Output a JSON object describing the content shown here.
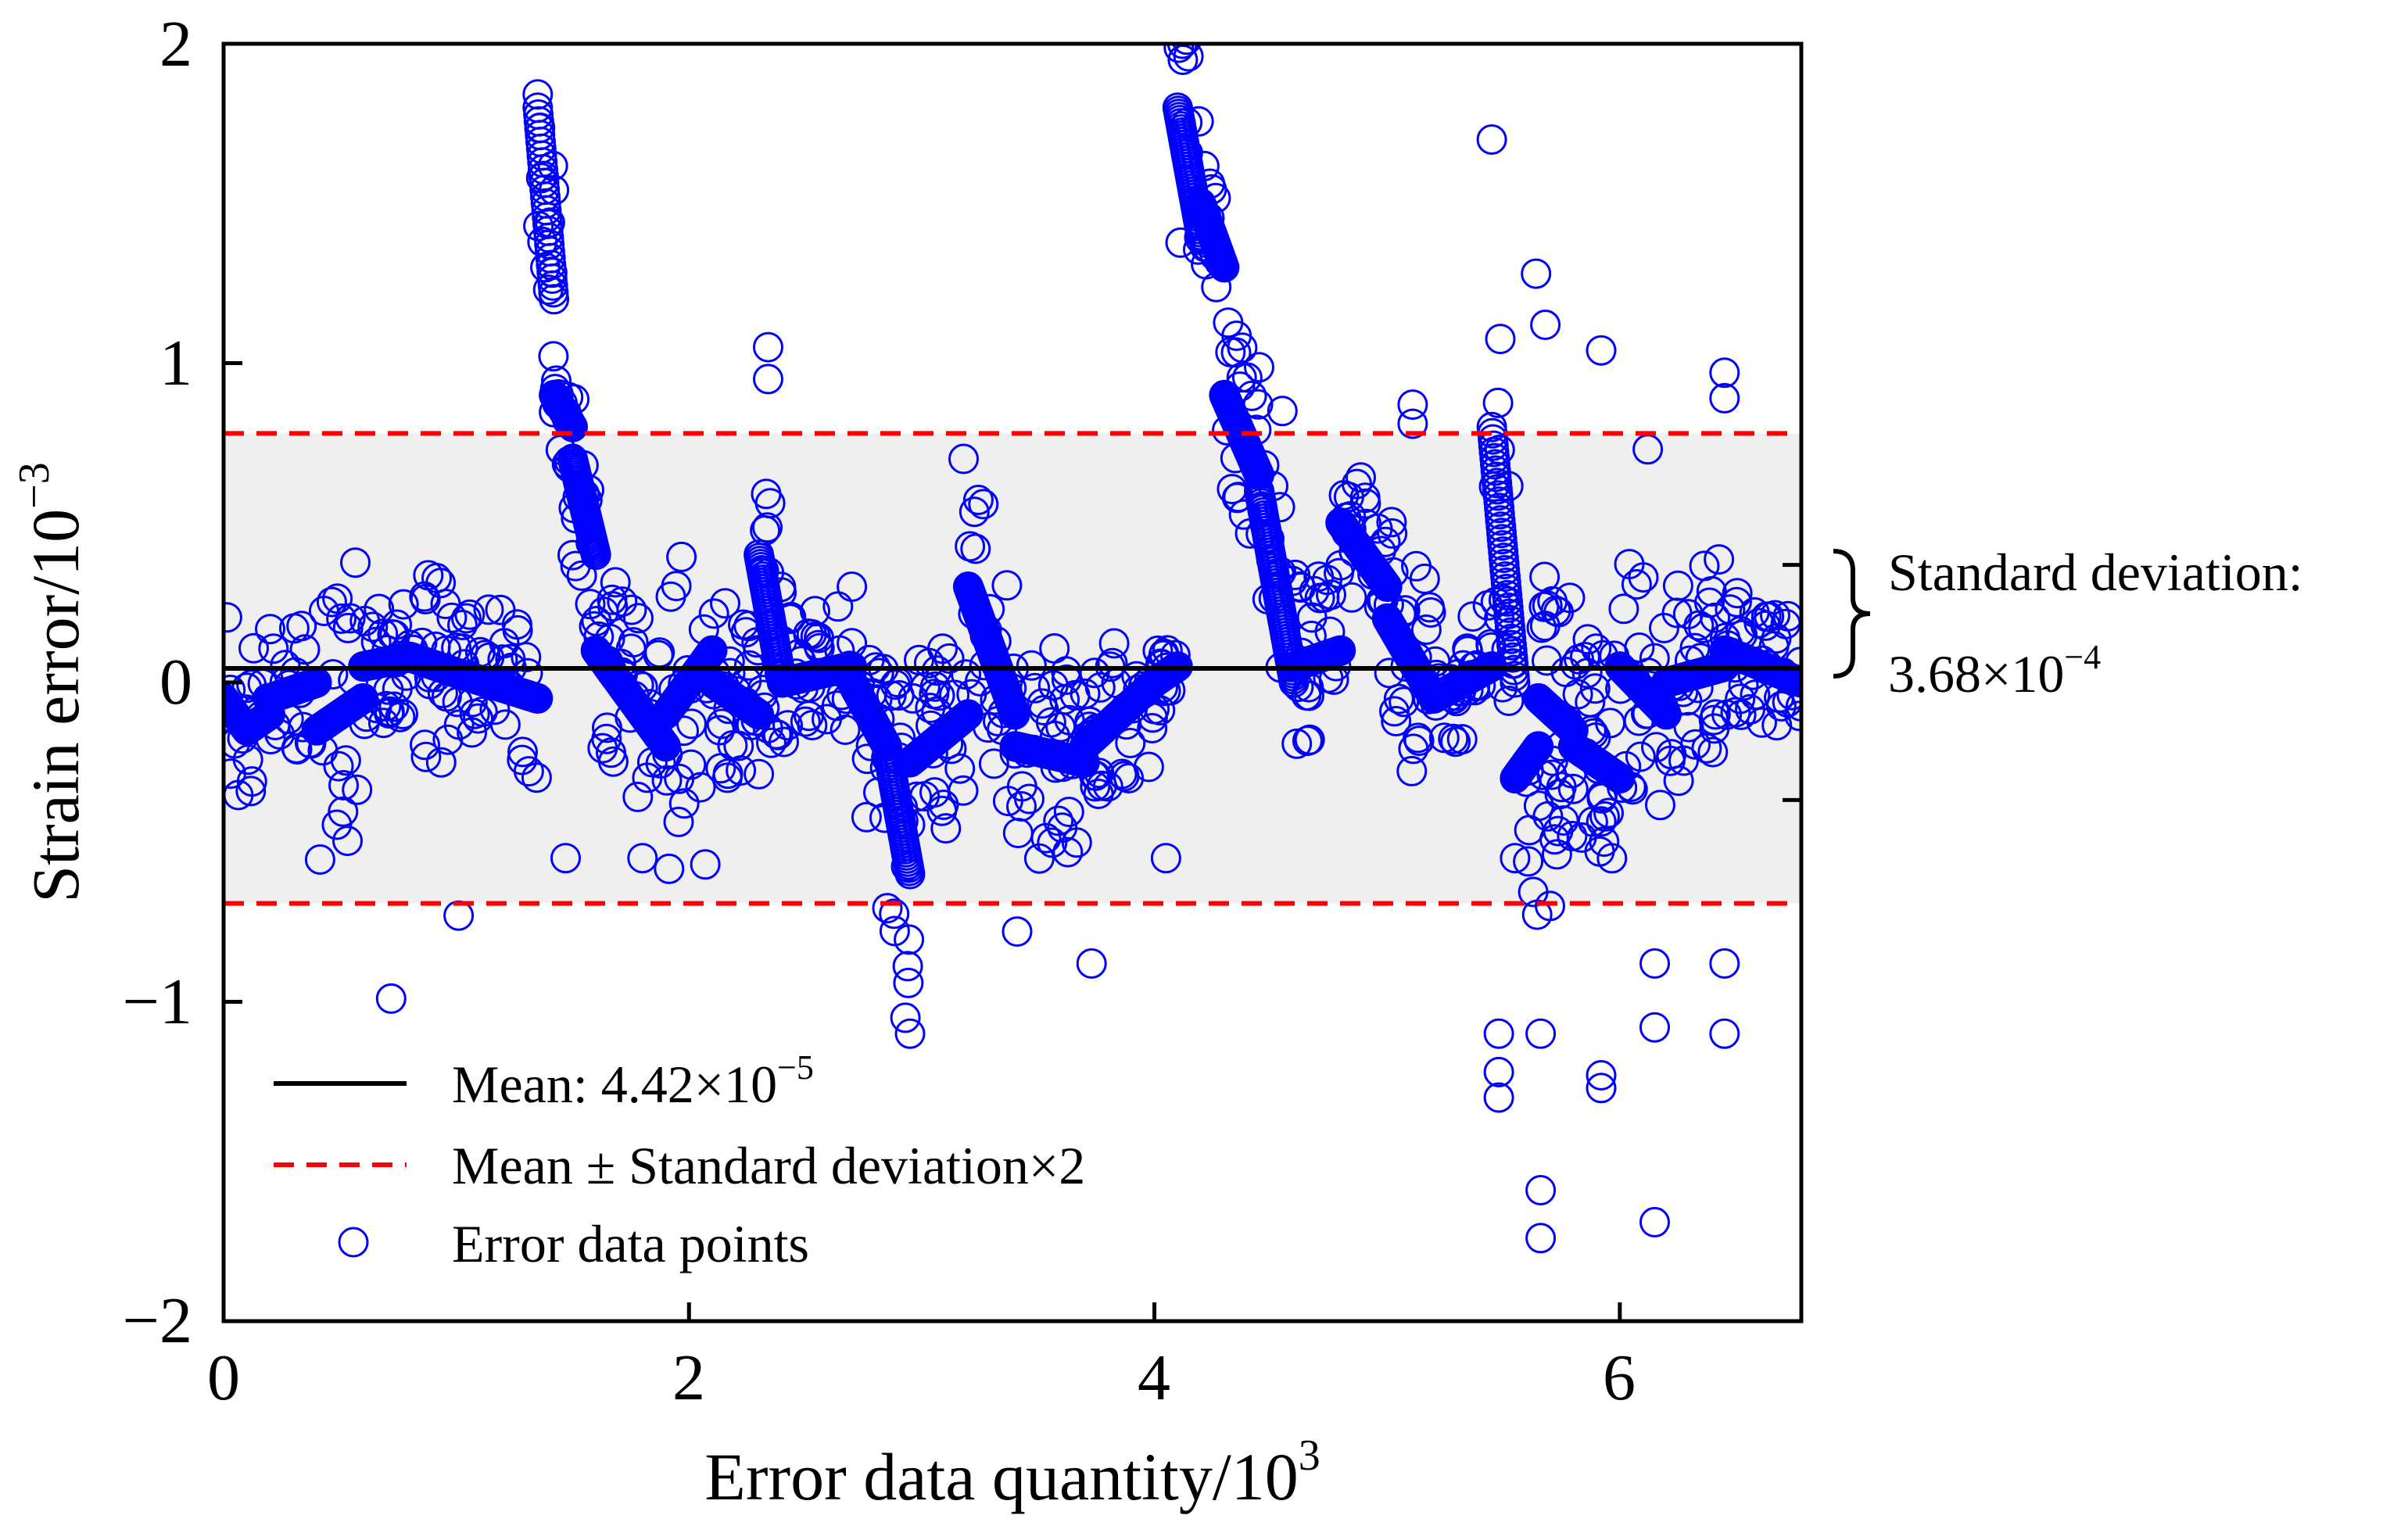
{
  "chart_data": {
    "type": "scatter",
    "title": "",
    "xlabel": "Error data quantity/10",
    "xlabel_sup": "3",
    "ylabel": "Strain error/10",
    "ylabel_sup": "−3",
    "xlim": [
      0,
      6.78
    ],
    "ylim": [
      -2,
      2
    ],
    "x_ticks": [
      0,
      2,
      4,
      6
    ],
    "x_tick_labels": [
      "0",
      "2",
      "4",
      "6"
    ],
    "y_ticks": [
      -2,
      -1,
      0,
      1,
      2
    ],
    "y_tick_labels": [
      "−2",
      "−1",
      "0",
      "1",
      "2"
    ],
    "right_axis_ticks": [
      -0.368,
      0.368
    ],
    "grid": false,
    "mean": 0.0442,
    "band": [
      -0.692,
      0.78
    ],
    "band_color": "#efefef",
    "colors": {
      "points": "#0000ff",
      "mean_line": "#000000",
      "bounds": "#ff0000"
    },
    "legend": {
      "placement": "lower-left",
      "entries": [
        {
          "label_main": "Mean: 4.42×10",
          "label_sup": "−5",
          "marker": "solid-line"
        },
        {
          "label_main": "Mean ± Standard deviation×2",
          "marker": "dashed-line"
        },
        {
          "label_main": "Error data points",
          "marker": "circle"
        }
      ]
    },
    "annotation": {
      "line1": "Standard deviation:",
      "line2_main": "3.68×10",
      "line2_sup": "−4"
    },
    "segments": [
      {
        "x0": 0.0,
        "x1": 0.1,
        "y0": -0.05,
        "y1": -0.15,
        "spread": 0.35
      },
      {
        "x0": 0.1,
        "x1": 0.2,
        "y0": -0.15,
        "y1": -0.1,
        "spread": 0.4
      },
      {
        "x0": 0.2,
        "x1": 0.4,
        "y0": -0.05,
        "y1": 0.0,
        "spread": 0.25
      },
      {
        "x0": 0.4,
        "x1": 0.6,
        "y0": -0.15,
        "y1": -0.05,
        "spread": 0.45
      },
      {
        "x0": 0.6,
        "x1": 0.8,
        "y0": 0.05,
        "y1": 0.08,
        "spread": 0.2
      },
      {
        "x0": 0.8,
        "x1": 1.0,
        "y0": 0.08,
        "y1": 0.03,
        "spread": 0.3
      },
      {
        "x0": 1.0,
        "x1": 1.35,
        "y0": 0.03,
        "y1": -0.05,
        "spread": 0.25
      },
      {
        "x0": 1.35,
        "x1": 1.42,
        "y0": 1.8,
        "y1": 1.2,
        "spread": 0.45
      },
      {
        "x0": 1.42,
        "x1": 1.5,
        "y0": 0.9,
        "y1": 0.8,
        "spread": 0.15
      },
      {
        "x0": 1.5,
        "x1": 1.6,
        "y0": 0.7,
        "y1": 0.4,
        "spread": 0.35
      },
      {
        "x0": 1.6,
        "x1": 1.9,
        "y0": 0.1,
        "y1": -0.2,
        "spread": 0.3
      },
      {
        "x0": 1.9,
        "x1": 2.1,
        "y0": -0.1,
        "y1": 0.1,
        "spread": 0.5
      },
      {
        "x0": 2.1,
        "x1": 2.3,
        "y0": 0.0,
        "y1": -0.1,
        "spread": 0.3
      },
      {
        "x0": 2.3,
        "x1": 2.4,
        "y0": 0.4,
        "y1": 0.0,
        "spread": 0.4
      },
      {
        "x0": 2.4,
        "x1": 2.7,
        "y0": 0.0,
        "y1": 0.05,
        "spread": 0.2
      },
      {
        "x0": 2.7,
        "x1": 2.85,
        "y0": 0.0,
        "y1": -0.2,
        "spread": 0.35
      },
      {
        "x0": 2.85,
        "x1": 2.95,
        "y0": -0.2,
        "y1": -0.6,
        "spread": 0.5
      },
      {
        "x0": 2.95,
        "x1": 3.2,
        "y0": -0.25,
        "y1": -0.1,
        "spread": 0.3
      },
      {
        "x0": 3.2,
        "x1": 3.4,
        "y0": 0.3,
        "y1": -0.1,
        "spread": 0.4
      },
      {
        "x0": 3.4,
        "x1": 3.7,
        "y0": -0.2,
        "y1": -0.25,
        "spread": 0.35
      },
      {
        "x0": 3.7,
        "x1": 4.0,
        "y0": -0.2,
        "y1": 0.0,
        "spread": 0.25
      },
      {
        "x0": 4.0,
        "x1": 4.1,
        "y0": 0.0,
        "y1": 0.05,
        "spread": 0.1
      },
      {
        "x0": 4.1,
        "x1": 4.2,
        "y0": 1.8,
        "y1": 1.4,
        "spread": 0.4
      },
      {
        "x0": 4.2,
        "x1": 4.3,
        "y0": 1.5,
        "y1": 1.3,
        "spread": 0.15
      },
      {
        "x0": 4.3,
        "x1": 4.45,
        "y0": 0.9,
        "y1": 0.65,
        "spread": 0.3
      },
      {
        "x0": 4.45,
        "x1": 4.6,
        "y0": 0.6,
        "y1": 0.0,
        "spread": 0.4
      },
      {
        "x0": 4.6,
        "x1": 4.8,
        "y0": 0.05,
        "y1": 0.1,
        "spread": 0.3
      },
      {
        "x0": 4.8,
        "x1": 5.0,
        "y0": 0.5,
        "y1": 0.3,
        "spread": 0.25
      },
      {
        "x0": 5.0,
        "x1": 5.2,
        "y0": 0.2,
        "y1": -0.05,
        "spread": 0.35
      },
      {
        "x0": 5.2,
        "x1": 5.45,
        "y0": -0.05,
        "y1": 0.05,
        "spread": 0.2
      },
      {
        "x0": 5.45,
        "x1": 5.55,
        "y0": 0.8,
        "y1": 0.0,
        "spread": 0.6
      },
      {
        "x0": 5.55,
        "x1": 5.65,
        "y0": -0.3,
        "y1": -0.2,
        "spread": 0.55
      },
      {
        "x0": 5.65,
        "x1": 5.8,
        "y0": -0.05,
        "y1": -0.15,
        "spread": 0.45
      },
      {
        "x0": 5.8,
        "x1": 6.0,
        "y0": -0.2,
        "y1": -0.3,
        "spread": 0.4
      },
      {
        "x0": 6.0,
        "x1": 6.2,
        "y0": 0.05,
        "y1": -0.1,
        "spread": 0.4
      },
      {
        "x0": 6.2,
        "x1": 6.45,
        "y0": 0.0,
        "y1": 0.05,
        "spread": 0.35
      },
      {
        "x0": 6.45,
        "x1": 6.78,
        "y0": 0.1,
        "y1": 0.0,
        "spread": 0.2
      }
    ],
    "outliers": [
      {
        "x": 0.72,
        "y": -0.99
      },
      {
        "x": 1.01,
        "y": -0.73
      },
      {
        "x": 2.34,
        "y": 1.05
      },
      {
        "x": 2.34,
        "y": 0.95
      },
      {
        "x": 2.07,
        "y": -0.57
      },
      {
        "x": 3.41,
        "y": -0.78
      },
      {
        "x": 3.73,
        "y": -0.88
      },
      {
        "x": 4.05,
        "y": -0.55
      },
      {
        "x": 4.12,
        "y": 2.0
      },
      {
        "x": 5.11,
        "y": 0.87
      },
      {
        "x": 5.11,
        "y": 0.81
      },
      {
        "x": 5.45,
        "y": 1.7
      },
      {
        "x": 5.48,
        "y": -1.3
      },
      {
        "x": 5.48,
        "y": -1.22
      },
      {
        "x": 5.48,
        "y": -1.1
      },
      {
        "x": 5.64,
        "y": 1.28
      },
      {
        "x": 5.66,
        "y": -1.59
      },
      {
        "x": 5.66,
        "y": -1.74
      },
      {
        "x": 5.66,
        "y": -1.1
      },
      {
        "x": 5.92,
        "y": 1.04
      },
      {
        "x": 5.92,
        "y": -1.23
      },
      {
        "x": 5.92,
        "y": -1.27
      },
      {
        "x": 6.15,
        "y": -1.69
      },
      {
        "x": 6.15,
        "y": -1.08
      },
      {
        "x": 6.15,
        "y": -0.88
      },
      {
        "x": 6.12,
        "y": 0.73
      },
      {
        "x": 6.45,
        "y": 0.97
      },
      {
        "x": 6.45,
        "y": 0.89
      },
      {
        "x": 6.45,
        "y": -1.1
      },
      {
        "x": 6.45,
        "y": -0.88
      },
      {
        "x": 1.47,
        "y": -0.55
      },
      {
        "x": 1.8,
        "y": -0.55
      },
      {
        "x": 2.7,
        "y": 0.3
      },
      {
        "x": 2.95,
        "y": -1.1
      },
      {
        "x": 2.93,
        "y": -1.05
      },
      {
        "x": 3.18,
        "y": 0.7
      },
      {
        "x": 4.55,
        "y": 0.85
      },
      {
        "x": 5.55,
        "y": -0.55
      },
      {
        "x": 5.68,
        "y": 1.12
      },
      {
        "x": 5.7,
        "y": -0.7
      }
    ]
  }
}
